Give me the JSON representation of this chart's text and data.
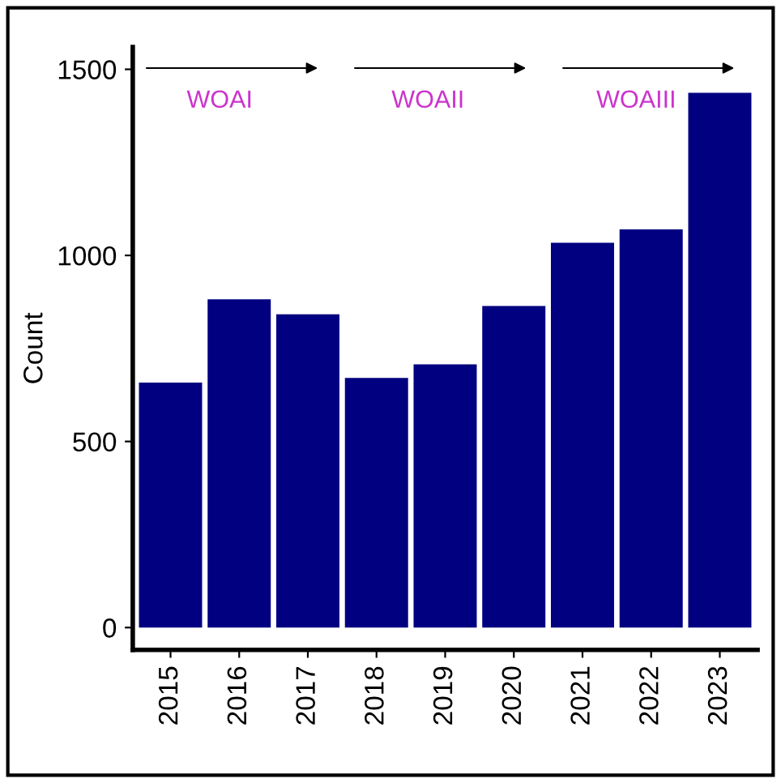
{
  "chart_data": {
    "type": "bar",
    "ylabel": "Count",
    "categories": [
      "2015",
      "2016",
      "2017",
      "2018",
      "2019",
      "2020",
      "2021",
      "2022",
      "2023"
    ],
    "values": [
      658,
      882,
      842,
      671,
      707,
      864,
      1034,
      1070,
      1437
    ],
    "color": "#000080",
    "ylim": [
      -60,
      1560
    ],
    "yticks": [
      0,
      500,
      1000,
      1500
    ],
    "grid": false,
    "annotations": [
      "WOAI",
      "WOAII",
      "WOAIII"
    ]
  }
}
